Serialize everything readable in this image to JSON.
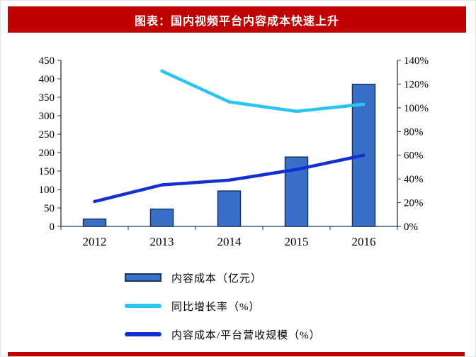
{
  "header": {
    "title": "图表：国内视频平台内容成本快速上升"
  },
  "colors": {
    "accent": "#C00000",
    "axis": "#17375E"
  },
  "legend": [
    {
      "label": "内容成本（亿元）",
      "type": "bar",
      "color": "#3A6FC8",
      "border": "#17375E"
    },
    {
      "label": "同比增长率（%）",
      "type": "line",
      "color": "#29C4F2"
    },
    {
      "label": "内容成本/平台营收规模（%）",
      "type": "line",
      "color": "#1230D2"
    }
  ],
  "chart_data": {
    "type": "combo",
    "title": "图表：国内视频平台内容成本快速上升",
    "categories": [
      "2012",
      "2013",
      "2014",
      "2015",
      "2016"
    ],
    "series": [
      {
        "name": "内容成本（亿元）",
        "type": "bar",
        "axis": "left",
        "values": [
          20,
          47,
          96,
          188,
          385
        ],
        "color": "#3A6FC8",
        "border": "#17375E"
      },
      {
        "name": "同比增长率（%）",
        "type": "line",
        "axis": "right",
        "values": [
          null,
          131,
          105,
          97,
          103
        ],
        "color": "#29C4F2"
      },
      {
        "name": "内容成本/平台营收规模（%）",
        "type": "line",
        "axis": "right",
        "values": [
          21,
          35,
          39,
          48,
          60
        ],
        "color": "#1230D2"
      }
    ],
    "left_axis": {
      "min": 0,
      "max": 450,
      "step": 50,
      "suffix": ""
    },
    "right_axis": {
      "min": 0,
      "max": 140,
      "step": 20,
      "suffix": "%"
    },
    "grid": false,
    "legend_position": "bottom-left"
  }
}
